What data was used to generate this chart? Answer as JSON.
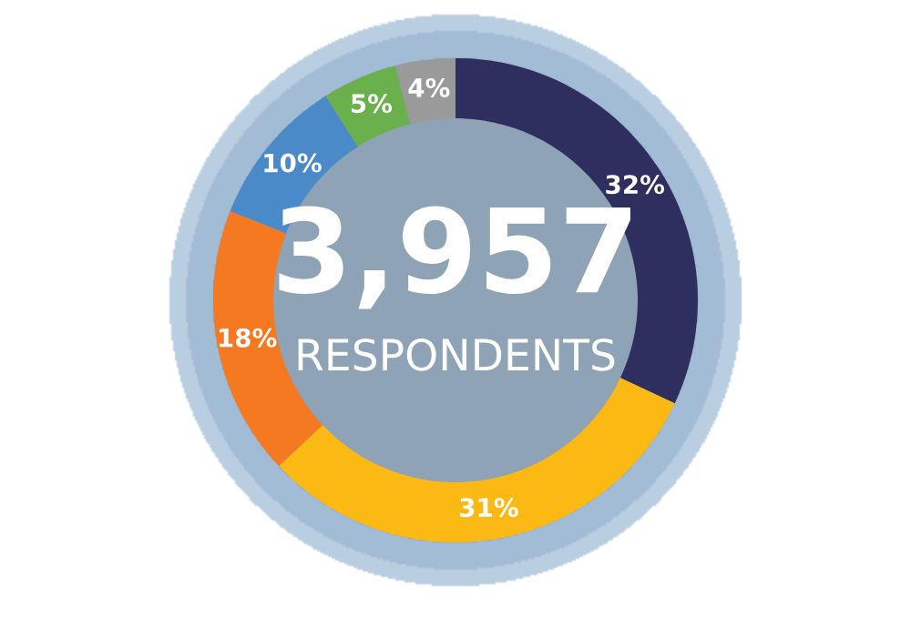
{
  "chart_data": {
    "type": "donut",
    "categories": [
      null,
      null,
      null,
      null,
      null,
      null
    ],
    "values": [
      32,
      31,
      18,
      10,
      5,
      4
    ],
    "colors": [
      "#2e2f5e",
      "#fdb913",
      "#f47920",
      "#4a8ac9",
      "#6ab04c",
      "#9a9a9a"
    ],
    "value_labels": [
      "32%",
      "31%",
      "18%",
      "10%",
      "5%",
      "4%"
    ],
    "annotations": [
      "3,957",
      "RESPONDENTS"
    ]
  }
}
